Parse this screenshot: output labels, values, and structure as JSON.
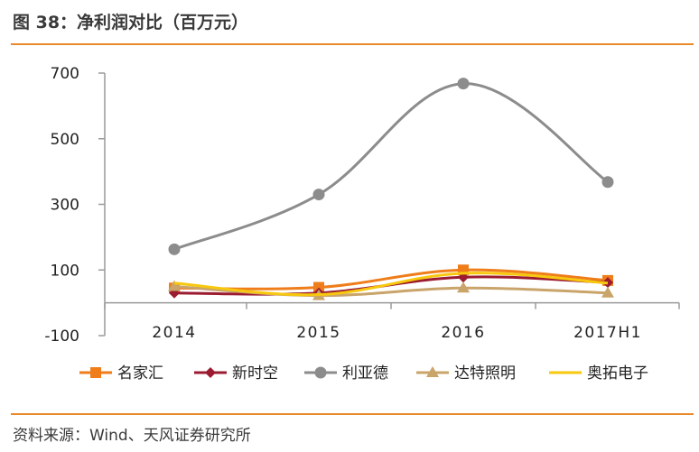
{
  "header": {
    "title": "图 38：净利润对比（百万元）"
  },
  "footer": {
    "source": "资料来源：Wind、天风证券研究所"
  },
  "chart_data": {
    "type": "line",
    "title": "净利润对比（百万元）",
    "xlabel": "",
    "ylabel": "",
    "categories": [
      "2014",
      "2015",
      "2016",
      "2017H1"
    ],
    "ylim": [
      -100,
      700
    ],
    "yticks": [
      -100,
      100,
      300,
      500,
      700
    ],
    "series": [
      {
        "name": "名家汇",
        "values": [
          45,
          47,
          100,
          68
        ],
        "color": "#ee7d1a",
        "marker": "square"
      },
      {
        "name": "新时空",
        "values": [
          30,
          30,
          78,
          62
        ],
        "color": "#9b1b30",
        "marker": "diamond"
      },
      {
        "name": "利亚德",
        "values": [
          163,
          330,
          668,
          368
        ],
        "color": "#8c8c8c",
        "marker": "circle"
      },
      {
        "name": "达特照明",
        "values": [
          50,
          22,
          45,
          30
        ],
        "color": "#c9a46b",
        "marker": "triangle"
      },
      {
        "name": "奥拓电子",
        "values": [
          60,
          25,
          90,
          60
        ],
        "color": "#f7c80e",
        "marker": "none"
      }
    ]
  }
}
